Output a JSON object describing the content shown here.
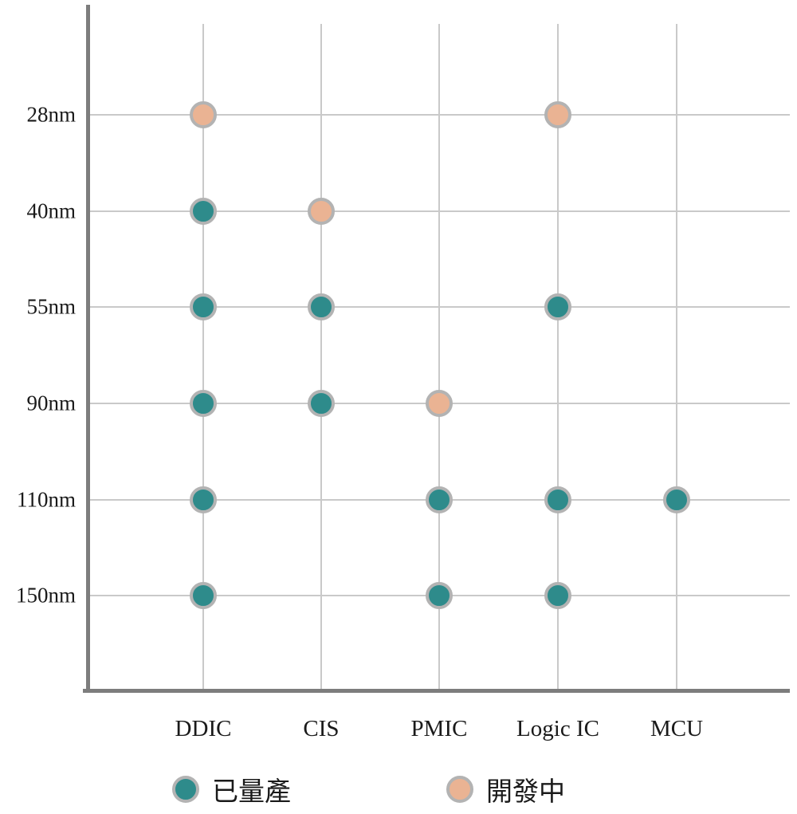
{
  "chart_data": {
    "type": "scatter",
    "title": "",
    "xlabel": "",
    "ylabel": "",
    "x_categories": [
      "DDIC",
      "CIS",
      "PMIC",
      "Logic IC",
      "MCU"
    ],
    "y_categories": [
      "28nm",
      "40nm",
      "55nm",
      "90nm",
      "110nm",
      "150nm"
    ],
    "legend_position": "bottom",
    "grid": true,
    "legend": [
      {
        "label": "已量產",
        "status": "production",
        "color": "#2e8b8b"
      },
      {
        "label": "開發中",
        "status": "development",
        "color": "#eab393"
      }
    ],
    "colors": {
      "production": "#2e8b8b",
      "development": "#eab393",
      "dot_ring": "#b3b3b3",
      "axis": "#7d7d7d",
      "grid": "#c9c9c9"
    },
    "points": [
      {
        "x": "DDIC",
        "y": "28nm",
        "status": "development"
      },
      {
        "x": "Logic IC",
        "y": "28nm",
        "status": "development"
      },
      {
        "x": "DDIC",
        "y": "40nm",
        "status": "production"
      },
      {
        "x": "CIS",
        "y": "40nm",
        "status": "development"
      },
      {
        "x": "DDIC",
        "y": "55nm",
        "status": "production"
      },
      {
        "x": "CIS",
        "y": "55nm",
        "status": "production"
      },
      {
        "x": "Logic IC",
        "y": "55nm",
        "status": "production"
      },
      {
        "x": "DDIC",
        "y": "90nm",
        "status": "production"
      },
      {
        "x": "CIS",
        "y": "90nm",
        "status": "production"
      },
      {
        "x": "PMIC",
        "y": "90nm",
        "status": "development"
      },
      {
        "x": "DDIC",
        "y": "110nm",
        "status": "production"
      },
      {
        "x": "PMIC",
        "y": "110nm",
        "status": "production"
      },
      {
        "x": "Logic IC",
        "y": "110nm",
        "status": "production"
      },
      {
        "x": "MCU",
        "y": "110nm",
        "status": "production"
      },
      {
        "x": "DDIC",
        "y": "150nm",
        "status": "production"
      },
      {
        "x": "PMIC",
        "y": "150nm",
        "status": "production"
      },
      {
        "x": "Logic IC",
        "y": "150nm",
        "status": "production"
      }
    ]
  }
}
